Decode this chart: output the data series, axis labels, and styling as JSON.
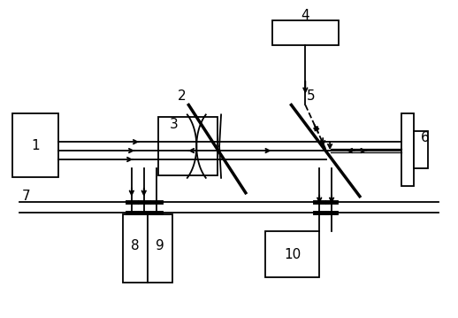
{
  "bg_color": "#ffffff",
  "line_color": "#000000",
  "fig_width": 5.18,
  "fig_height": 3.59,
  "dpi": 100
}
